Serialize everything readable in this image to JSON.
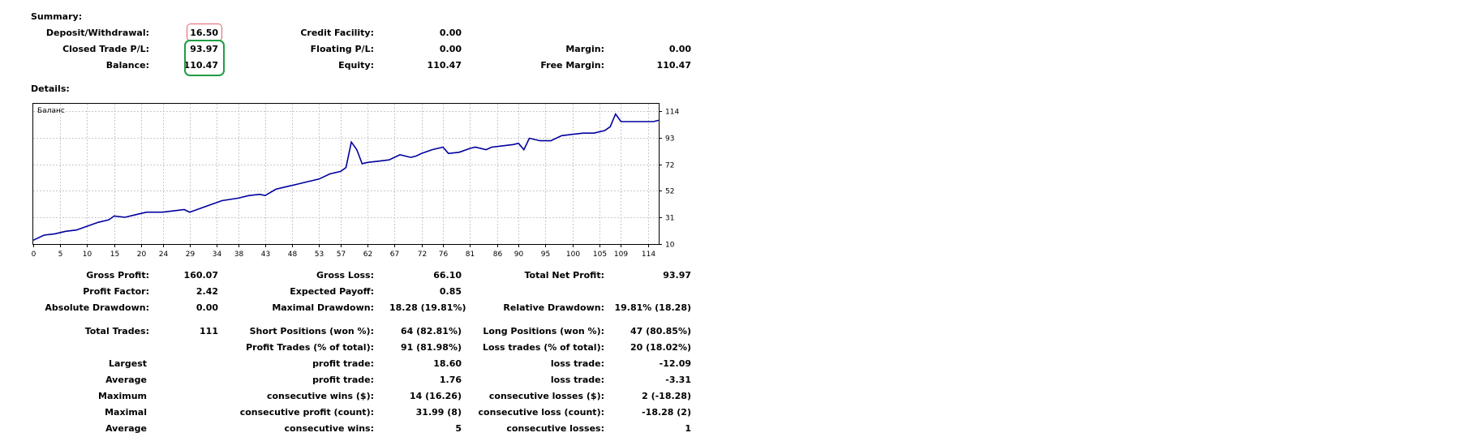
{
  "summary": {
    "heading": "Summary:",
    "deposit_withdrawal": {
      "label": "Deposit/Withdrawal:",
      "value": "16.50"
    },
    "credit_facility": {
      "label": "Credit Facility:",
      "value": "0.00"
    },
    "closed_trade_pl": {
      "label": "Closed Trade P/L:",
      "value": "93.97"
    },
    "floating_pl": {
      "label": "Floating P/L:",
      "value": "0.00"
    },
    "margin": {
      "label": "Margin:",
      "value": "0.00"
    },
    "balance": {
      "label": "Balance:",
      "value": "110.47"
    },
    "equity": {
      "label": "Equity:",
      "value": "110.47"
    },
    "free_margin": {
      "label": "Free Margin:",
      "value": "110.47"
    }
  },
  "details": {
    "heading": "Details:",
    "highlight_colors": {
      "deposit": "#e0606e",
      "closed_balance": "#1f9e42"
    }
  },
  "chart_data": {
    "type": "line",
    "title": "Баланс",
    "line_color": "#0000a0",
    "grid": true,
    "x_ticks": [
      0,
      5,
      10,
      15,
      20,
      24,
      29,
      34,
      38,
      43,
      48,
      53,
      57,
      62,
      67,
      72,
      76,
      81,
      86,
      90,
      95,
      100,
      105,
      109,
      114
    ],
    "y_ticks": [
      10,
      31,
      52,
      72,
      93,
      114
    ],
    "xlim": [
      0,
      116
    ],
    "ylim": [
      10,
      120
    ],
    "series": [
      {
        "x": [
          0,
          2,
          4,
          6,
          8,
          10,
          12,
          14,
          15,
          17,
          19,
          21,
          24,
          26,
          28,
          29,
          31,
          33,
          35,
          38,
          40,
          42,
          43,
          45,
          47,
          49,
          51,
          53,
          55,
          57,
          58,
          59,
          60,
          61,
          62,
          64,
          66,
          68,
          70,
          71,
          72,
          74,
          76,
          77,
          79,
          81,
          82,
          84,
          85,
          87,
          89,
          90,
          91,
          92,
          94,
          96,
          98,
          100,
          102,
          104,
          106,
          107,
          108,
          109,
          111,
          113,
          115,
          116
        ],
        "y": [
          13,
          17,
          18,
          20,
          21,
          24,
          27,
          29,
          32,
          31,
          33,
          35,
          35,
          36,
          37,
          35,
          38,
          41,
          44,
          46,
          48,
          49,
          48,
          53,
          55,
          57,
          59,
          61,
          65,
          67,
          70,
          90,
          84,
          73,
          74,
          75,
          76,
          80,
          78,
          79,
          81,
          84,
          86,
          81,
          82,
          85,
          86,
          84,
          86,
          87,
          88,
          89,
          84,
          93,
          91,
          91,
          95,
          96,
          97,
          97,
          99,
          102,
          112,
          106,
          106,
          106,
          106,
          107
        ]
      }
    ]
  },
  "stats": {
    "gross_profit": {
      "label": "Gross Profit:",
      "value": "160.07"
    },
    "gross_loss": {
      "label": "Gross Loss:",
      "value": "66.10"
    },
    "total_net_profit": {
      "label": "Total Net Profit:",
      "value": "93.97"
    },
    "profit_factor": {
      "label": "Profit Factor:",
      "value": "2.42"
    },
    "expected_payoff": {
      "label": "Expected Payoff:",
      "value": "0.85"
    },
    "absolute_drawdown": {
      "label": "Absolute Drawdown:",
      "value": "0.00"
    },
    "maximal_drawdown": {
      "label": "Maximal Drawdown:",
      "value": "18.28 (19.81%)"
    },
    "relative_drawdown": {
      "label": "Relative Drawdown:",
      "value": "19.81% (18.28)"
    },
    "total_trades": {
      "label": "Total Trades:",
      "value": "111"
    },
    "short_positions": {
      "label": "Short Positions (won %):",
      "value": "64 (82.81%)"
    },
    "long_positions": {
      "label": "Long Positions (won %):",
      "value": "47 (80.85%)"
    },
    "profit_trades": {
      "label": "Profit Trades (% of total):",
      "value": "91 (81.98%)"
    },
    "loss_trades": {
      "label": "Loss trades (% of total):",
      "value": "20 (18.02%)"
    },
    "largest": {
      "label": "Largest",
      "profit_label": "profit trade:",
      "profit_value": "18.60",
      "loss_label": "loss trade:",
      "loss_value": "-12.09"
    },
    "average": {
      "label": "Average",
      "profit_label": "profit trade:",
      "profit_value": "1.76",
      "loss_label": "loss trade:",
      "loss_value": "-3.31"
    },
    "maximum": {
      "label": "Maximum",
      "profit_label": "consecutive wins ($):",
      "profit_value": "14 (16.26)",
      "loss_label": "consecutive losses ($):",
      "loss_value": "2 (-18.28)"
    },
    "maximal": {
      "label": "Maximal",
      "profit_label": "consecutive profit (count):",
      "profit_value": "31.99 (8)",
      "loss_label": "consecutive loss (count):",
      "loss_value": "-18.28 (2)"
    },
    "average_consec": {
      "label": "Average",
      "profit_label": "consecutive wins:",
      "profit_value": "5",
      "loss_label": "consecutive losses:",
      "loss_value": "1"
    }
  }
}
